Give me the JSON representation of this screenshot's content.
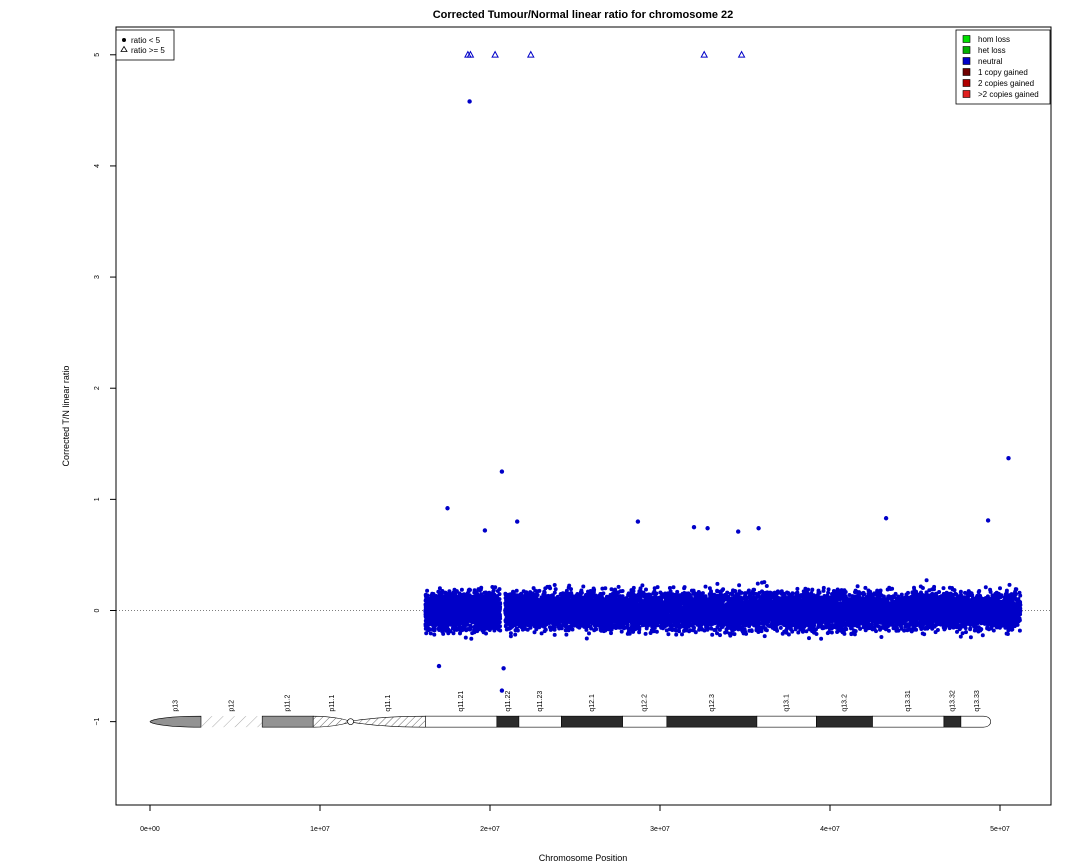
{
  "chart_data": {
    "type": "scatter",
    "title": "Corrected Tumour/Normal linear ratio for chromosome  22",
    "xlabel": "Chromosome Position",
    "ylabel": "Corrected T/N linear ratio",
    "xlim": [
      -2000000,
      53000000
    ],
    "ylim": [
      -1.75,
      5.25
    ],
    "x_ticks": [
      0,
      10000000,
      20000000,
      30000000,
      40000000,
      50000000
    ],
    "x_tick_labels": [
      "0e+00",
      "1e+07",
      "2e+07",
      "3e+07",
      "4e+07",
      "5e+07"
    ],
    "y_ticks": [
      -1,
      0,
      1,
      2,
      3,
      4,
      5
    ],
    "y_tick_labels": [
      "−1",
      "0",
      "1",
      "2",
      "3",
      "4",
      "5"
    ],
    "reference_line_y": 0,
    "point_color": "#0000c8",
    "bulk_cloud": {
      "segments": [
        [
          16200000,
          20600000
        ],
        [
          20900000,
          51200000
        ]
      ],
      "center": 0,
      "spread": 0.15,
      "min": -0.5,
      "max": 0.55
    },
    "outliers_circle": [
      {
        "x": 18800000,
        "y": 4.58
      },
      {
        "x": 20700000,
        "y": 1.25
      },
      {
        "x": 50500000,
        "y": 1.37
      },
      {
        "x": 17500000,
        "y": 0.92
      },
      {
        "x": 43300000,
        "y": 0.83
      },
      {
        "x": 21600000,
        "y": 0.8
      },
      {
        "x": 28700000,
        "y": 0.8
      },
      {
        "x": 49300000,
        "y": 0.81
      },
      {
        "x": 32000000,
        "y": 0.75
      },
      {
        "x": 32800000,
        "y": 0.74
      },
      {
        "x": 35800000,
        "y": 0.74
      },
      {
        "x": 19700000,
        "y": 0.72
      },
      {
        "x": 34600000,
        "y": 0.71
      },
      {
        "x": 20700000,
        "y": -0.72
      },
      {
        "x": 20800000,
        "y": -0.52
      },
      {
        "x": 17000000,
        "y": -0.5
      }
    ],
    "outliers_triangle": [
      {
        "x": 18700000,
        "y": 5
      },
      {
        "x": 18850000,
        "y": 5
      },
      {
        "x": 20300000,
        "y": 5
      },
      {
        "x": 22400000,
        "y": 5
      },
      {
        "x": 32600000,
        "y": 5
      },
      {
        "x": 34800000,
        "y": 5
      }
    ],
    "legend_symbols": [
      {
        "label": "ratio < 5",
        "shape": "circle"
      },
      {
        "label": "ratio >= 5",
        "shape": "triangle"
      }
    ],
    "legend_symbols_position": "top-left",
    "legend_categories": [
      {
        "label": "hom loss",
        "color": "#00e000"
      },
      {
        "label": "het loss",
        "color": "#00b000"
      },
      {
        "label": "neutral",
        "color": "#0000c8"
      },
      {
        "label": "1 copy gained",
        "color": "#700000"
      },
      {
        "label": "2 copies gained",
        "color": "#b00000"
      },
      {
        "label": ">2 copies gained",
        "color": "#e02020"
      }
    ],
    "legend_categories_position": "top-right",
    "ideogram": {
      "y": -1,
      "bands": [
        {
          "name": "p13",
          "start": 0,
          "end": 3000000,
          "stain": "gpos50",
          "shape": "left-cap"
        },
        {
          "name": "p12",
          "start": 3000000,
          "end": 6600000,
          "stain": "stalk"
        },
        {
          "name": "p11.2",
          "start": 6600000,
          "end": 9600000,
          "stain": "gpos50"
        },
        {
          "name": "p11.1",
          "start": 9600000,
          "end": 11800000,
          "stain": "acen",
          "shape": "p-centromere"
        },
        {
          "name": "q11.1",
          "start": 11800000,
          "end": 16200000,
          "stain": "acen",
          "shape": "q-centromere"
        },
        {
          "name": "q11.21",
          "start": 16200000,
          "end": 20400000,
          "stain": "gneg"
        },
        {
          "name": "q11.22",
          "start": 20400000,
          "end": 21700000,
          "stain": "gpos100"
        },
        {
          "name": "q11.23",
          "start": 21700000,
          "end": 24200000,
          "stain": "gneg"
        },
        {
          "name": "q12.1",
          "start": 24200000,
          "end": 27800000,
          "stain": "gpos100"
        },
        {
          "name": "q12.2",
          "start": 27800000,
          "end": 30400000,
          "stain": "gneg"
        },
        {
          "name": "q12.3",
          "start": 30400000,
          "end": 35700000,
          "stain": "gpos100"
        },
        {
          "name": "q13.1",
          "start": 35700000,
          "end": 39200000,
          "stain": "gneg"
        },
        {
          "name": "q13.2",
          "start": 39200000,
          "end": 42500000,
          "stain": "gpos100"
        },
        {
          "name": "q13.31",
          "start": 42500000,
          "end": 46700000,
          "stain": "gneg"
        },
        {
          "name": "q13.32",
          "start": 46700000,
          "end": 47700000,
          "stain": "gpos100"
        },
        {
          "name": "q13.33",
          "start": 47700000,
          "end": 49600000,
          "stain": "gneg",
          "shape": "right-cap"
        }
      ]
    }
  }
}
